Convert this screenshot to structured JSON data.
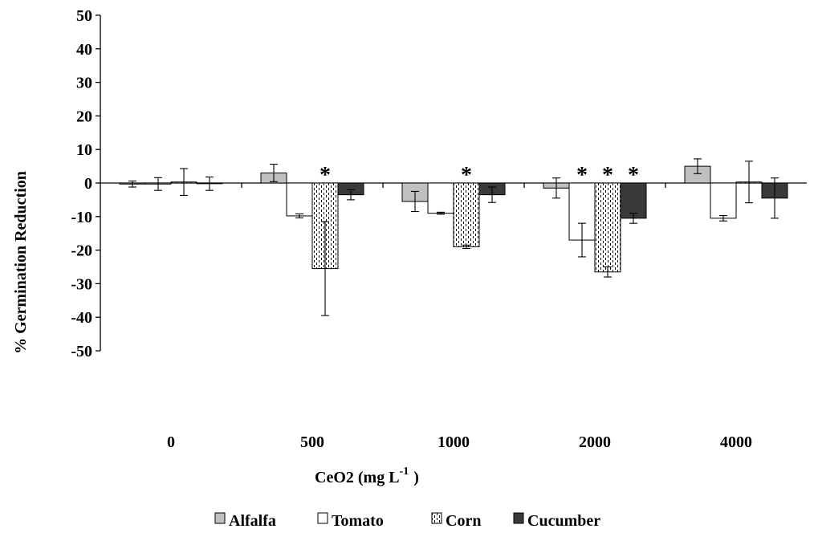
{
  "chart_data": {
    "type": "bar",
    "xlabel": "CeO2 (mg L",
    "xlabel_sup": "-1",
    "xlabel_end": ")",
    "ylabel": "% Germination Reduction",
    "ylim": [
      -50,
      50
    ],
    "yticks": [
      50,
      40,
      30,
      20,
      10,
      0,
      -10,
      -20,
      -30,
      -40,
      -50
    ],
    "categories": [
      "0",
      "500",
      "1000",
      "2000",
      "4000"
    ],
    "series": [
      {
        "name": "Alfalfa",
        "pattern": "gray",
        "values": [
          -0.3,
          3.0,
          -5.5,
          -1.5,
          5.0
        ],
        "errors": [
          0.9,
          2.6,
          3.0,
          3.0,
          2.2
        ],
        "significant": [
          false,
          false,
          false,
          false,
          false
        ]
      },
      {
        "name": "Tomato",
        "pattern": "white",
        "values": [
          -0.3,
          -9.8,
          -9.0,
          -17.0,
          -10.5
        ],
        "errors": [
          1.9,
          0.6,
          0.3,
          5.0,
          0.8
        ],
        "significant": [
          false,
          false,
          false,
          true,
          false
        ]
      },
      {
        "name": "Corn",
        "pattern": "dotted",
        "values": [
          0.3,
          -25.5,
          -19.0,
          -26.5,
          0.3
        ],
        "errors": [
          4.0,
          14.0,
          0.5,
          1.5,
          6.2
        ],
        "significant": [
          false,
          true,
          true,
          true,
          false
        ]
      },
      {
        "name": "Cucumber",
        "pattern": "dark",
        "values": [
          -0.2,
          -3.5,
          -3.5,
          -10.5,
          -4.5
        ],
        "errors": [
          2.0,
          1.5,
          2.3,
          1.5,
          6.0
        ],
        "significant": [
          false,
          false,
          false,
          true,
          false
        ]
      }
    ],
    "significance_marker": "*",
    "legend_position": "bottom",
    "grid": false,
    "colors": {
      "gray": "#c0c0c0",
      "dark": "#3a3a3a",
      "white": "#ffffff"
    }
  }
}
